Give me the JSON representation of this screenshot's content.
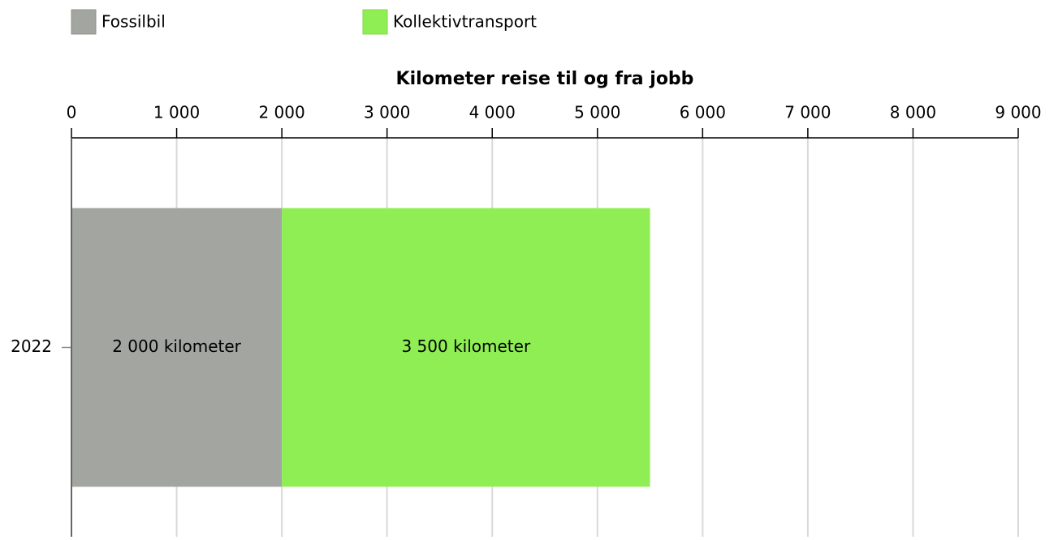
{
  "chart_data": {
    "type": "bar",
    "orientation": "horizontal",
    "stacked": true,
    "xlabel": "Kilometer reise til og fra jobb",
    "categories": [
      "2022"
    ],
    "series": [
      {
        "name": "Fossilbil",
        "color": "#a3a5a0",
        "values": [
          2000
        ],
        "value_labels": [
          "2 000 kilometer"
        ]
      },
      {
        "name": "Kollektivtransport",
        "color": "#90ee55",
        "values": [
          3500
        ],
        "value_labels": [
          "3 500 kilometer"
        ]
      }
    ],
    "xlim": [
      0,
      9000
    ],
    "xticks": [
      0,
      {
        "value": 1000,
        "label": "1 000"
      },
      {
        "value": 2000,
        "label": "2 000"
      },
      {
        "value": 3000,
        "label": "3 000"
      },
      {
        "value": 4000,
        "label": "4 000"
      },
      {
        "value": 5000,
        "label": "5 000"
      },
      {
        "value": 6000,
        "label": "6 000"
      },
      {
        "value": 7000,
        "label": "7 000"
      },
      {
        "value": 8000,
        "label": "8 000"
      },
      {
        "value": 9000,
        "label": "9 000"
      }
    ],
    "grid": true,
    "legend": "top-left"
  }
}
